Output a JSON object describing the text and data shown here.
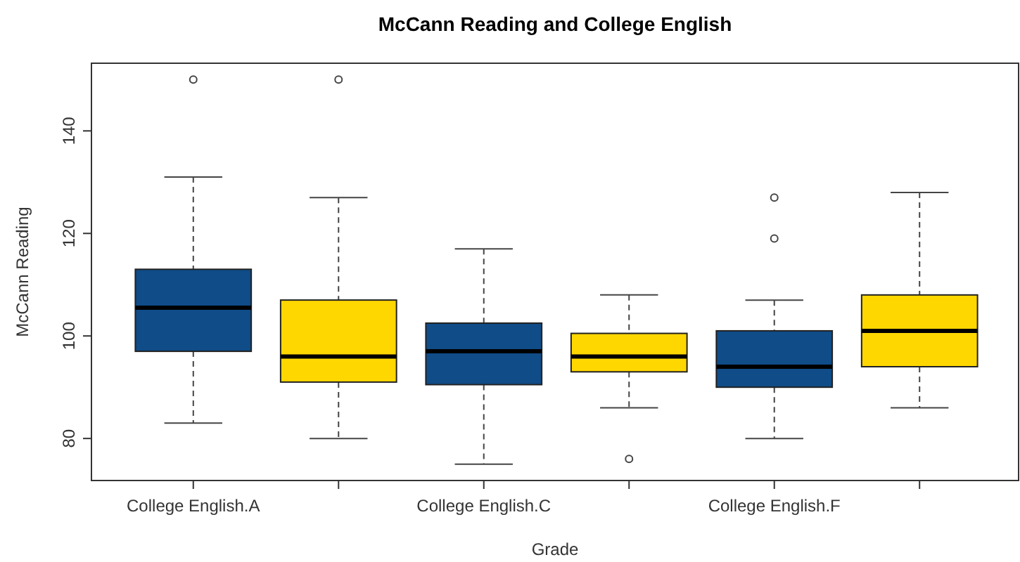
{
  "chart_data": {
    "type": "box",
    "title": "McCann Reading and College English",
    "xlabel": "Grade",
    "ylabel": "McCann Reading",
    "categories": [
      "College English.A",
      null,
      "College English.C",
      null,
      "College English.F",
      null
    ],
    "colors": [
      "#0f4c88",
      "#ffd700",
      "#0f4c88",
      "#ffd700",
      "#0f4c88",
      "#ffd700"
    ],
    "boxes": [
      {
        "low": 83,
        "q1": 97,
        "median": 105.5,
        "q3": 113,
        "high": 131,
        "outliers": [
          150
        ]
      },
      {
        "low": 80,
        "q1": 91,
        "median": 96,
        "q3": 107,
        "high": 127,
        "outliers": [
          150
        ]
      },
      {
        "low": 75,
        "q1": 90.5,
        "median": 97,
        "q3": 102.5,
        "high": 117
      },
      {
        "low": 86,
        "q1": 93,
        "median": 96,
        "q3": 100.5,
        "high": 108,
        "outliers": [
          76
        ]
      },
      {
        "low": 80,
        "q1": 90,
        "median": 94,
        "q3": 101,
        "high": 107,
        "outliers": [
          127,
          119
        ]
      },
      {
        "low": 86,
        "q1": 94,
        "median": 101,
        "q3": 108,
        "high": 128
      }
    ],
    "ylim": [
      71.8,
      153.2
    ],
    "yticks": [
      80,
      100,
      120,
      140
    ],
    "grid": false
  }
}
